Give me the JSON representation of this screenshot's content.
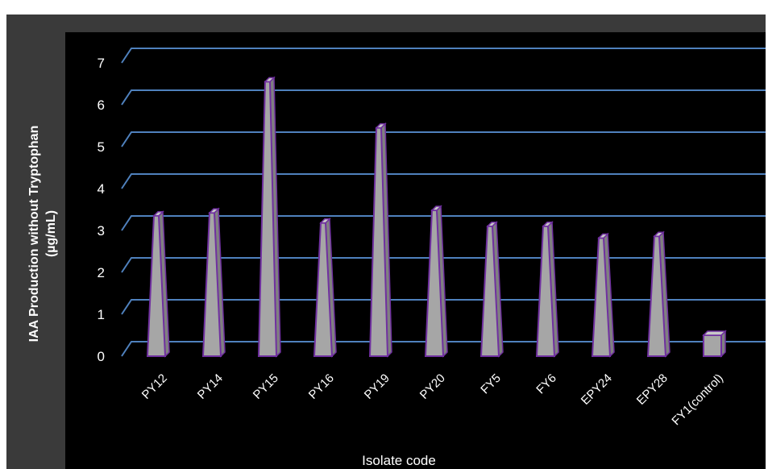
{
  "chart_data": {
    "type": "bar",
    "title": "",
    "categories": [
      "PY12",
      "PY14",
      "PY15",
      "PY16",
      "PY19",
      "PY20",
      "FY5",
      "FY6",
      "EPY24",
      "EPY28",
      "FY1(control)"
    ],
    "values": [
      3.35,
      3.42,
      6.55,
      3.18,
      5.45,
      3.48,
      3.1,
      3.1,
      2.82,
      2.86,
      0.5
    ],
    "xlabel": "Isolate code",
    "ylabel_line1": "IAA Production without Tryptophan",
    "ylabel_line2": "(µg/mL)",
    "ylim": [
      0,
      7
    ],
    "yticks": [
      0,
      1,
      2,
      3,
      4,
      5,
      6,
      7
    ],
    "grid": true,
    "legend": "none",
    "colors": {
      "outer_background": "#3a3a3a",
      "plot_background": "#000000",
      "gridline": "#4f81bd",
      "bar_fill": "#a6a6a6",
      "bar_side": "#808080",
      "bar_top": "#c8c8c8",
      "bar_outline": "#7030a0",
      "text": "#ffffff"
    }
  }
}
